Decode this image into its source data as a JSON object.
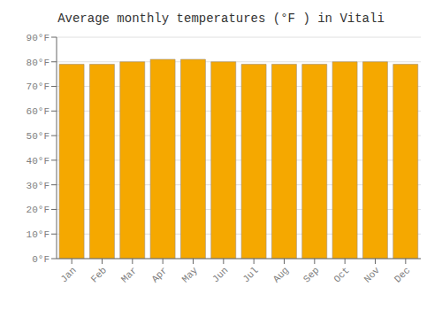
{
  "chart_data": {
    "type": "bar",
    "title": "Average monthly temperatures (°F ) in Vitali",
    "categories": [
      "Jan",
      "Feb",
      "Mar",
      "Apr",
      "May",
      "Jun",
      "Jul",
      "Aug",
      "Sep",
      "Oct",
      "Nov",
      "Dec"
    ],
    "values": [
      79,
      79,
      80,
      81,
      81,
      80,
      79,
      79,
      79,
      80,
      80,
      79
    ],
    "color": "#F5A800",
    "ylim": [
      0,
      90
    ],
    "yticks": [
      {
        "value": 0,
        "label": "0°F"
      },
      {
        "value": 10,
        "label": "10°F"
      },
      {
        "value": 20,
        "label": "20°F"
      },
      {
        "value": 30,
        "label": "30°F"
      },
      {
        "value": 40,
        "label": "40°F"
      },
      {
        "value": 50,
        "label": "50°F"
      },
      {
        "value": 60,
        "label": "60°F"
      },
      {
        "value": 70,
        "label": "70°F"
      },
      {
        "value": 80,
        "label": "80°F"
      },
      {
        "value": 90,
        "label": "90°F"
      }
    ],
    "grid": true
  }
}
